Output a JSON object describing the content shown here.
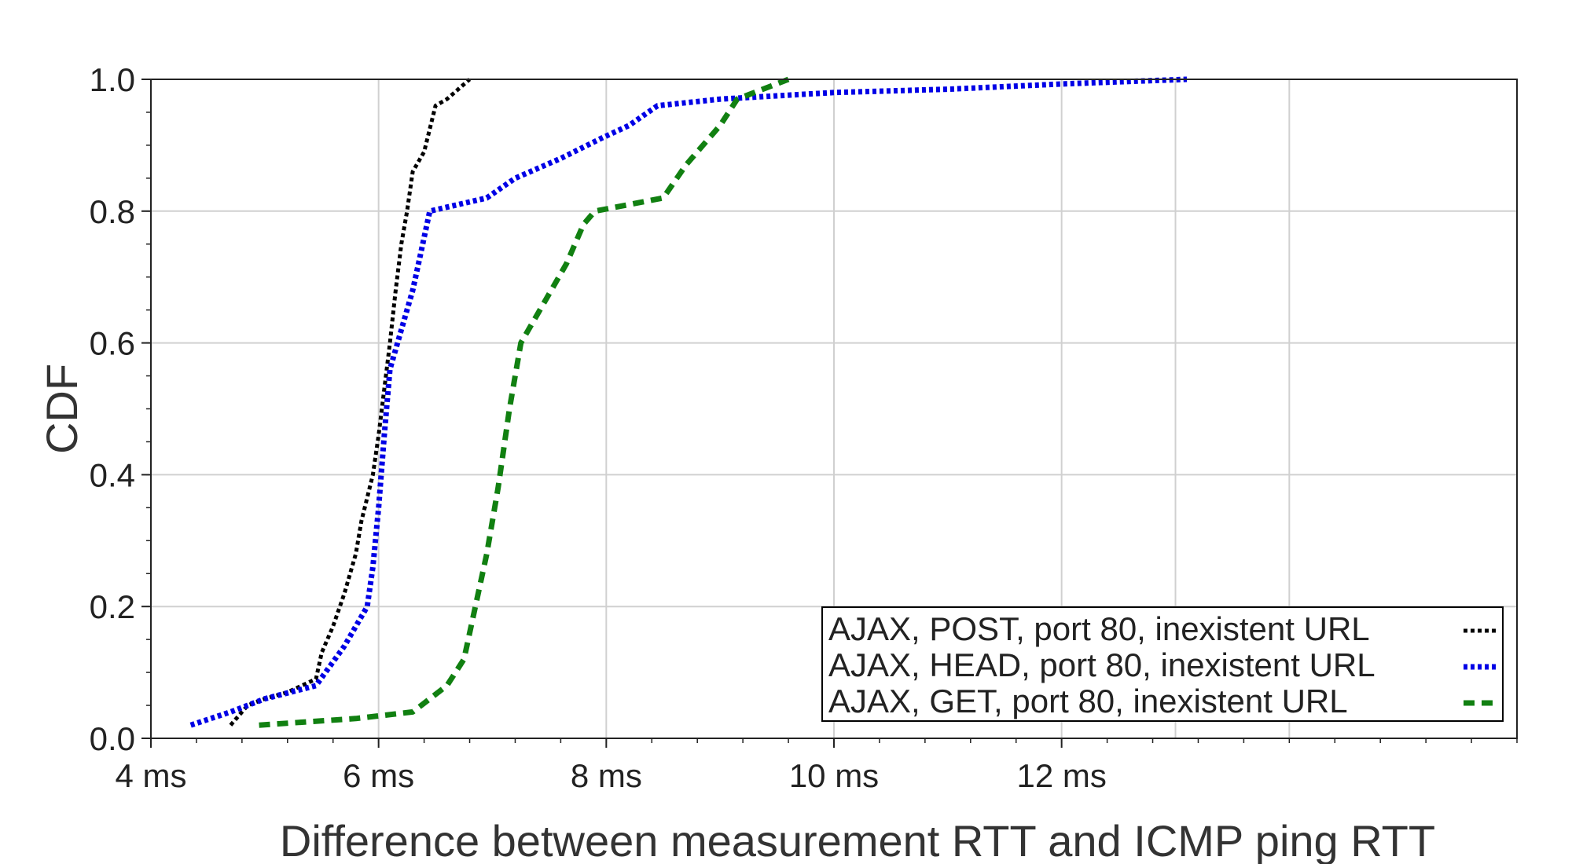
{
  "chart_data": {
    "type": "line",
    "xlabel": "Difference between measurement RTT and ICMP ping RTT",
    "ylabel": "CDF",
    "xlim": [
      4,
      16
    ],
    "ylim": [
      0.0,
      1.0
    ],
    "x_ticks": [
      4,
      6,
      8,
      10,
      12
    ],
    "x_tick_labels": [
      "4 ms",
      "6 ms",
      "8 ms",
      "10 ms",
      "12 ms"
    ],
    "y_ticks": [
      0.0,
      0.2,
      0.4,
      0.6,
      0.8,
      1.0
    ],
    "y_tick_labels": [
      "0.0",
      "0.2",
      "0.4",
      "0.6",
      "0.8",
      "1.0"
    ],
    "grid": true,
    "legend_position": "bottom-right",
    "series": [
      {
        "name": "AJAX, POST, port 80, inexistent URL",
        "color": "#000000",
        "style": "dotted",
        "x": [
          4.7,
          4.85,
          5.0,
          5.2,
          5.45,
          5.5,
          5.6,
          5.7,
          5.8,
          5.85,
          5.95,
          6.0,
          6.05,
          6.1,
          6.15,
          6.2,
          6.25,
          6.3,
          6.4,
          6.5,
          6.6,
          6.8
        ],
        "y": [
          0.02,
          0.05,
          0.06,
          0.07,
          0.09,
          0.13,
          0.17,
          0.22,
          0.28,
          0.33,
          0.4,
          0.46,
          0.53,
          0.6,
          0.68,
          0.75,
          0.8,
          0.86,
          0.89,
          0.96,
          0.97,
          1.0
        ]
      },
      {
        "name": "AJAX, HEAD, port 80, inexistent URL",
        "color": "#0000e6",
        "style": "dotted",
        "x": [
          4.35,
          4.7,
          5.0,
          5.45,
          5.7,
          5.9,
          5.95,
          6.0,
          6.05,
          6.1,
          6.2,
          6.3,
          6.35,
          6.45,
          6.95,
          7.2,
          7.6,
          7.95,
          8.2,
          8.45,
          9.0,
          9.5,
          10.0,
          11.0,
          12.0,
          13.1
        ],
        "y": [
          0.02,
          0.04,
          0.06,
          0.08,
          0.14,
          0.2,
          0.26,
          0.35,
          0.46,
          0.56,
          0.62,
          0.68,
          0.72,
          0.8,
          0.82,
          0.85,
          0.88,
          0.91,
          0.93,
          0.96,
          0.97,
          0.975,
          0.98,
          0.985,
          0.993,
          1.0
        ]
      },
      {
        "name": "AJAX, GET, port 80, inexistent URL",
        "color": "#118011",
        "style": "dashed",
        "x": [
          4.95,
          5.8,
          6.3,
          6.6,
          6.75,
          6.85,
          6.95,
          7.05,
          7.15,
          7.25,
          7.45,
          7.65,
          7.8,
          7.9,
          8.2,
          8.5,
          8.7,
          8.85,
          9.0,
          9.15,
          9.6
        ],
        "y": [
          0.02,
          0.03,
          0.04,
          0.08,
          0.12,
          0.2,
          0.28,
          0.38,
          0.5,
          0.6,
          0.66,
          0.72,
          0.78,
          0.8,
          0.81,
          0.82,
          0.87,
          0.9,
          0.93,
          0.97,
          1.0
        ]
      }
    ]
  }
}
